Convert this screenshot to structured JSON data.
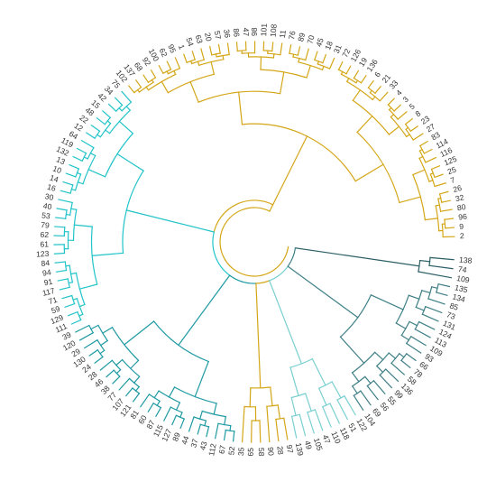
{
  "colors": {
    "gold": "#D4A617",
    "cyan": "#22C4C9",
    "teal": "#1E9AA3",
    "slate": "#3E7F86",
    "lightTeal": "#79CFD0",
    "dark": "#2C5F66"
  },
  "tree": {
    "groups": [
      {
        "color": "gold",
        "leaves": [
          "2",
          "9",
          "96",
          "80",
          "32",
          "26",
          "7",
          "25",
          "125",
          "116",
          "114",
          "83",
          "27",
          "23",
          "8",
          "5",
          "3",
          "4",
          "33",
          "21",
          "6",
          "136",
          "19",
          "126",
          "72",
          "31",
          "18",
          "45",
          "70",
          "89",
          "76",
          "11",
          "108",
          "101",
          "98",
          "47",
          "86",
          "36",
          "57",
          "20",
          "63",
          "54",
          "1",
          "95",
          "62",
          "100",
          "92",
          "68",
          "137",
          "102"
        ]
      },
      {
        "color": "cyan",
        "leaves": [
          "75",
          "34",
          "42",
          "15",
          "48",
          "22",
          "12",
          "64",
          "119",
          "132",
          "13",
          "10",
          "14",
          "16",
          "30",
          "40",
          "53",
          "79",
          "62",
          "61",
          "123",
          "84",
          "94",
          "91",
          "117",
          "71",
          "59",
          "129",
          "111"
        ]
      },
      {
        "color": "teal",
        "leaves": [
          "39",
          "120",
          "29",
          "130",
          "24",
          "28",
          "46",
          "38",
          "77",
          "107",
          "121",
          "81",
          "60",
          "87",
          "115",
          "127",
          "89",
          "44",
          "37",
          "43",
          "112",
          "67",
          "52"
        ]
      },
      {
        "color": "gold",
        "leaves": [
          "35",
          "65",
          "58",
          "90",
          "28",
          "97"
        ]
      },
      {
        "color": "lightTeal",
        "leaves": [
          "139",
          "49",
          "105",
          "47",
          "110",
          "118",
          "51",
          "122"
        ]
      },
      {
        "color": "slate",
        "leaves": [
          "104",
          "69",
          "56",
          "55",
          "99",
          "136",
          "58",
          "78",
          "66",
          "93",
          "109",
          "113",
          "124",
          "131",
          "73",
          "85",
          "134",
          "135"
        ]
      },
      {
        "color": "dark",
        "leaves": [
          "109",
          "74",
          "138"
        ]
      }
    ]
  }
}
